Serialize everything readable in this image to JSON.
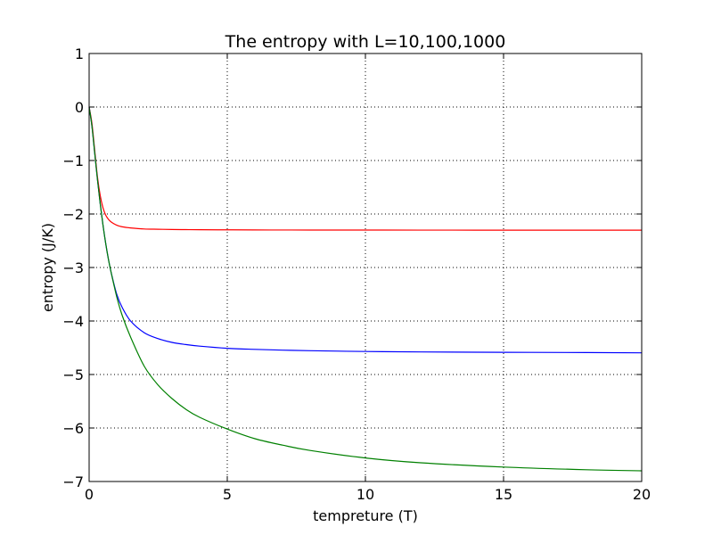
{
  "chart_data": {
    "type": "line",
    "title": "The entropy with L=10,100,1000",
    "xlabel": "tempreture (T)",
    "ylabel": "entropy (J/K)",
    "xlim": [
      0,
      20
    ],
    "ylim": [
      -7,
      1
    ],
    "x_ticks": [
      0,
      5,
      10,
      15,
      20
    ],
    "y_ticks": [
      1,
      0,
      -1,
      -2,
      -3,
      -4,
      -5,
      -6,
      -7
    ],
    "x_tick_labels": [
      "0",
      "5",
      "10",
      "15",
      "20"
    ],
    "y_tick_labels": [
      "1",
      "0",
      "−1",
      "−2",
      "−3",
      "−4",
      "−5",
      "−6",
      "−7"
    ],
    "grid": true,
    "grid_style": "dotted",
    "legend": "none",
    "x": [
      0,
      0.1,
      0.2,
      0.3,
      0.4,
      0.5,
      0.6,
      0.7,
      0.8,
      1.0,
      1.2,
      1.5,
      2,
      2.5,
      3,
      3.5,
      4,
      5,
      6,
      7,
      8,
      10,
      12,
      15,
      18,
      20
    ],
    "series": [
      {
        "color": "#ff0000",
        "values": [
          0,
          -0.3,
          -0.8,
          -1.3,
          -1.65,
          -1.88,
          -2.02,
          -2.1,
          -2.15,
          -2.21,
          -2.24,
          -2.26,
          -2.28,
          -2.285,
          -2.29,
          -2.292,
          -2.294,
          -2.296,
          -2.298,
          -2.299,
          -2.3,
          -2.3,
          -2.301,
          -2.302,
          -2.302,
          -2.302
        ]
      },
      {
        "color": "#0000ff",
        "values": [
          0,
          -0.35,
          -0.85,
          -1.35,
          -1.8,
          -2.2,
          -2.55,
          -2.85,
          -3.1,
          -3.5,
          -3.75,
          -4.0,
          -4.22,
          -4.33,
          -4.4,
          -4.44,
          -4.47,
          -4.51,
          -4.53,
          -4.545,
          -4.555,
          -4.57,
          -4.578,
          -4.585,
          -4.59,
          -4.595
        ]
      },
      {
        "color": "#008000",
        "values": [
          0,
          -0.35,
          -0.85,
          -1.35,
          -1.8,
          -2.2,
          -2.55,
          -2.85,
          -3.1,
          -3.55,
          -3.9,
          -4.3,
          -4.85,
          -5.2,
          -5.45,
          -5.65,
          -5.8,
          -6.02,
          -6.2,
          -6.32,
          -6.42,
          -6.56,
          -6.65,
          -6.73,
          -6.78,
          -6.8
        ]
      }
    ]
  }
}
